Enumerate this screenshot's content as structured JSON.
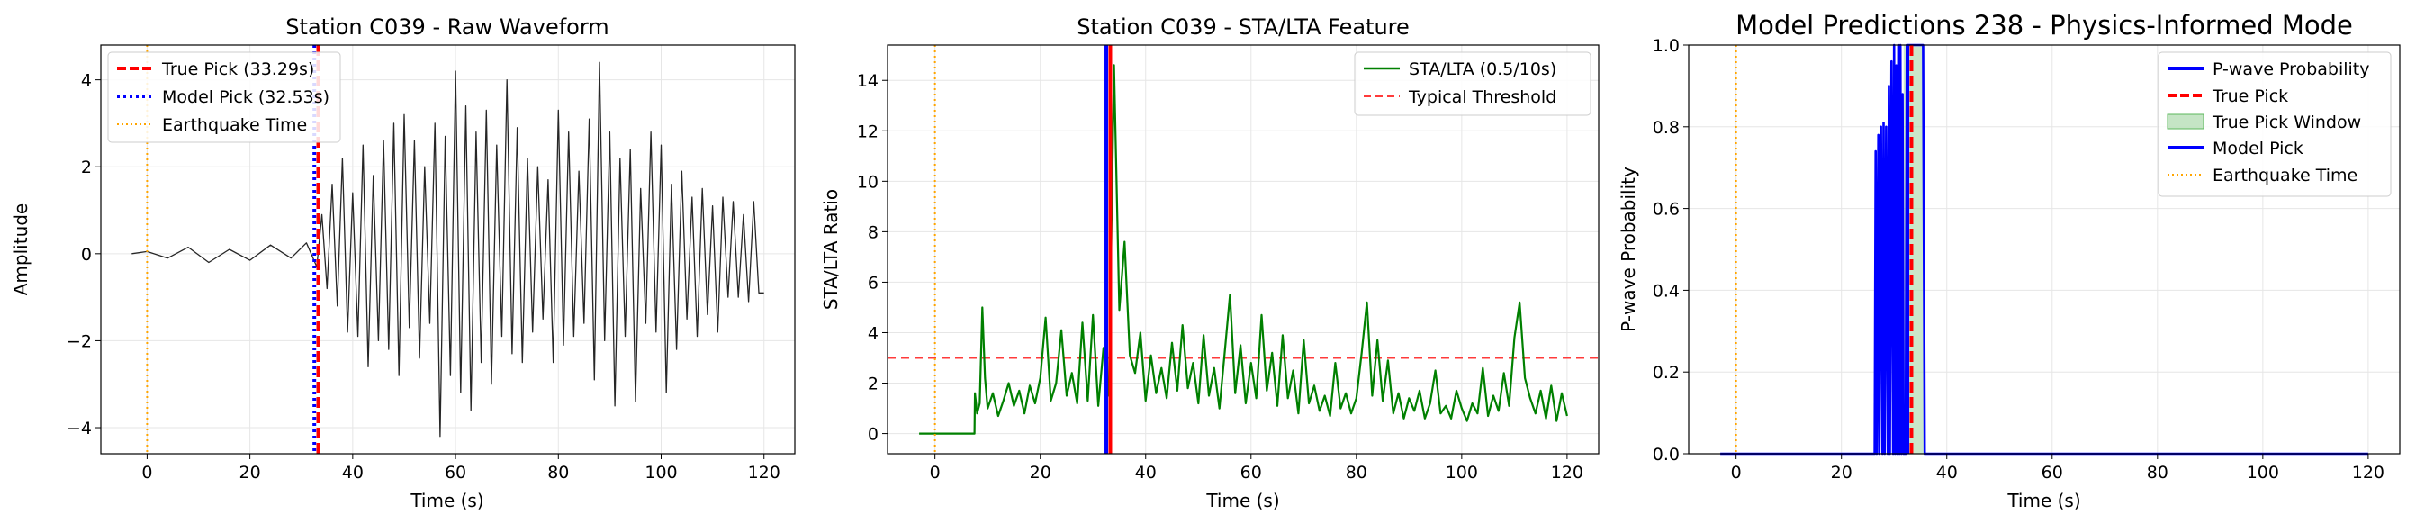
{
  "chart_data": [
    {
      "type": "line",
      "title": "Station C039 - Raw Waveform",
      "xlabel": "Time (s)",
      "ylabel": "Amplitude",
      "xlim": [
        -9,
        126
      ],
      "ylim": [
        -4.6,
        4.8
      ],
      "xticks": [
        0,
        20,
        40,
        60,
        80,
        100,
        120
      ],
      "yticks": [
        -4,
        -2,
        0,
        2,
        4
      ],
      "grid": true,
      "legend_position": "top-left",
      "series": [
        {
          "name": "",
          "color": "#262626",
          "x": [
            -3,
            0,
            4,
            8,
            12,
            16,
            20,
            24,
            28,
            31,
            33,
            34,
            35,
            36,
            37,
            38,
            39,
            40,
            41,
            42,
            43,
            44,
            45,
            46,
            47,
            48,
            49,
            50,
            51,
            52,
            53,
            54,
            55,
            56,
            57,
            58,
            59,
            60,
            61,
            62,
            63,
            64,
            65,
            66,
            67,
            68,
            69,
            70,
            71,
            72,
            73,
            74,
            75,
            76,
            77,
            78,
            79,
            80,
            81,
            82,
            83,
            84,
            85,
            86,
            87,
            88,
            89,
            90,
            91,
            92,
            93,
            94,
            95,
            96,
            97,
            98,
            99,
            100,
            101,
            102,
            103,
            104,
            105,
            106,
            107,
            108,
            109,
            110,
            111,
            112,
            113,
            114,
            115,
            116,
            117,
            118,
            119,
            120
          ],
          "y": [
            0.0,
            0.05,
            -0.1,
            0.15,
            -0.2,
            0.1,
            -0.15,
            0.2,
            -0.1,
            0.25,
            -0.3,
            0.9,
            -0.8,
            1.6,
            -1.2,
            2.2,
            -1.8,
            1.4,
            -1.9,
            2.5,
            -2.6,
            1.8,
            -2.0,
            2.6,
            -2.2,
            3.0,
            -2.8,
            3.2,
            -1.7,
            2.6,
            -2.4,
            2.0,
            -1.6,
            3.0,
            -4.2,
            2.7,
            -2.8,
            4.2,
            -3.2,
            3.4,
            -3.6,
            2.8,
            -2.5,
            3.3,
            -3.0,
            2.5,
            -1.9,
            4.0,
            -2.3,
            2.9,
            -2.5,
            2.2,
            -1.8,
            2.0,
            -1.5,
            1.7,
            -2.5,
            3.3,
            -2.1,
            2.8,
            -1.9,
            1.9,
            -1.6,
            3.1,
            -2.9,
            4.4,
            -2.0,
            2.8,
            -3.5,
            2.2,
            -1.9,
            2.4,
            -3.4,
            1.5,
            -1.6,
            2.8,
            -1.8,
            2.5,
            -3.2,
            1.6,
            -2.2,
            1.9,
            -1.5,
            1.3,
            -1.9,
            1.5,
            -1.4,
            1.1,
            -1.8,
            1.3,
            -1.0,
            1.2,
            -1.0,
            0.9,
            -1.1,
            1.2,
            -0.9,
            -0.9
          ]
        }
      ],
      "vlines": [
        {
          "label": "True Pick (33.29s)",
          "x": 33.29,
          "color": "#ff0000",
          "style": "dashed"
        },
        {
          "label": "Model Pick (32.53s)",
          "x": 32.53,
          "color": "#0000ff",
          "style": "dotted"
        },
        {
          "label": "Earthquake Time",
          "x": 0,
          "color": "#ffa500",
          "style": "dotted"
        }
      ]
    },
    {
      "type": "line",
      "title": "Station C039 - STA/LTA Feature",
      "xlabel": "Time (s)",
      "ylabel": "STA/LTA Ratio",
      "xlim": [
        -9,
        126
      ],
      "ylim": [
        -0.8,
        15.4
      ],
      "xticks": [
        0,
        20,
        40,
        60,
        80,
        100,
        120
      ],
      "yticks": [
        0,
        2,
        4,
        6,
        8,
        10,
        12,
        14
      ],
      "grid": true,
      "legend_position": "top-right",
      "series": [
        {
          "name": "STA/LTA (0.5/10s)",
          "color": "#008000",
          "x": [
            -3,
            7.5,
            7.6,
            8,
            8.5,
            9,
            9.5,
            10,
            11,
            12,
            13,
            14,
            15,
            16,
            17,
            18,
            19,
            20,
            21,
            22,
            23,
            24,
            25,
            26,
            27,
            28,
            29,
            30,
            31,
            32,
            33,
            34,
            35,
            36,
            37,
            38,
            39,
            40,
            41,
            42,
            43,
            44,
            45,
            46,
            47,
            48,
            49,
            50,
            51,
            52,
            53,
            54,
            55,
            56,
            57,
            58,
            59,
            60,
            61,
            62,
            63,
            64,
            65,
            66,
            67,
            68,
            69,
            70,
            71,
            72,
            73,
            74,
            75,
            76,
            77,
            78,
            79,
            80,
            81,
            82,
            83,
            84,
            85,
            86,
            87,
            88,
            89,
            90,
            91,
            92,
            93,
            94,
            95,
            96,
            97,
            98,
            99,
            100,
            101,
            102,
            103,
            104,
            105,
            106,
            107,
            108,
            109,
            110,
            111,
            112,
            113,
            114,
            115,
            116,
            117,
            118,
            119,
            120
          ],
          "y": [
            0.0,
            0.0,
            1.6,
            0.8,
            1.2,
            5.0,
            2.2,
            1.0,
            1.6,
            0.7,
            1.3,
            2.0,
            1.1,
            1.7,
            0.8,
            1.9,
            1.2,
            2.2,
            4.6,
            1.3,
            2.0,
            4.1,
            1.5,
            2.4,
            1.2,
            4.4,
            1.3,
            4.7,
            1.1,
            3.4,
            1.5,
            14.6,
            4.9,
            7.6,
            3.1,
            2.4,
            4.0,
            1.3,
            3.1,
            1.6,
            2.6,
            1.4,
            3.6,
            1.7,
            4.3,
            1.8,
            2.8,
            1.2,
            3.9,
            1.5,
            2.6,
            1.0,
            3.2,
            5.5,
            1.6,
            3.5,
            1.2,
            2.8,
            1.4,
            4.7,
            1.7,
            3.2,
            1.1,
            3.9,
            1.4,
            2.5,
            0.8,
            3.7,
            1.2,
            1.9,
            0.9,
            1.5,
            0.7,
            2.8,
            1.0,
            1.6,
            0.8,
            1.4,
            3.2,
            5.2,
            1.5,
            3.7,
            1.3,
            2.9,
            0.8,
            1.6,
            0.6,
            1.4,
            0.9,
            1.7,
            0.6,
            1.2,
            2.5,
            0.8,
            1.1,
            0.6,
            1.7,
            1.0,
            0.5,
            1.2,
            0.8,
            2.6,
            0.7,
            1.5,
            0.9,
            2.4,
            1.1,
            3.8,
            5.2,
            2.2,
            1.4,
            0.8,
            1.7,
            0.6,
            1.9,
            0.5,
            1.6,
            0.7
          ]
        }
      ],
      "hlines": [
        {
          "label": "Typical Threshold",
          "y": 3.0,
          "color": "#ff3b3b",
          "style": "dashed"
        }
      ],
      "vlines": [
        {
          "label": "",
          "x": 33.29,
          "color": "#ff0000",
          "style": "solid"
        },
        {
          "label": "",
          "x": 32.53,
          "color": "#0000ff",
          "style": "solid"
        },
        {
          "label": "",
          "x": 0,
          "color": "#ffa500",
          "style": "dotted"
        }
      ]
    },
    {
      "type": "line",
      "title": "Model Predictions 238 - Physics-Informed Mode",
      "xlabel": "Time (s)",
      "ylabel": "P-wave Probability",
      "xlim": [
        -9,
        126
      ],
      "ylim": [
        0.0,
        1.0
      ],
      "xticks": [
        0,
        20,
        40,
        60,
        80,
        100,
        120
      ],
      "yticks": [
        0.0,
        0.2,
        0.4,
        0.6,
        0.8,
        1.0
      ],
      "grid": true,
      "legend_position": "top-right",
      "series": [
        {
          "name": "P-wave Probability",
          "color": "#0000ff",
          "x": [
            -3,
            26.3,
            26.5,
            26.7,
            27.0,
            27.2,
            27.5,
            27.8,
            28.0,
            28.2,
            28.5,
            28.8,
            29.0,
            29.2,
            29.5,
            29.8,
            30.0,
            30.2,
            30.4,
            30.6,
            30.8,
            31.0,
            31.2,
            31.4,
            31.6,
            31.8,
            32.0,
            32.2,
            32.4,
            32.6,
            32.8,
            33.0,
            33.2,
            33.4,
            33.6,
            33.8,
            34.0,
            34.3,
            34.6,
            35.0,
            35.3,
            35.5,
            35.8,
            36.0,
            120
          ],
          "y": [
            0.0,
            0.0,
            0.74,
            0.0,
            0.78,
            0.0,
            0.8,
            0.0,
            0.81,
            0.0,
            0.8,
            0.0,
            0.9,
            0.0,
            0.96,
            0.0,
            1.0,
            0.0,
            0.95,
            0.0,
            1.0,
            0.0,
            1.0,
            0.0,
            0.88,
            0.0,
            0.0,
            0.0,
            1.0,
            1.0,
            1.0,
            1.0,
            1.0,
            1.0,
            1.0,
            1.0,
            1.0,
            1.0,
            1.0,
            1.0,
            1.0,
            1.0,
            0.0,
            0.0,
            0.0
          ]
        }
      ],
      "spans": [
        {
          "label": "True Pick Window",
          "x0": 31.8,
          "x1": 35.8,
          "color": "#9fd49f"
        }
      ],
      "vlines": [
        {
          "label": "True Pick",
          "x": 33.29,
          "color": "#ff0000",
          "style": "dashed"
        },
        {
          "label": "Model Pick",
          "x": 32.53,
          "color": "#0000ff",
          "style": "solid"
        },
        {
          "label": "Earthquake Time",
          "x": 0,
          "color": "#ffa500",
          "style": "dotted"
        }
      ]
    }
  ]
}
